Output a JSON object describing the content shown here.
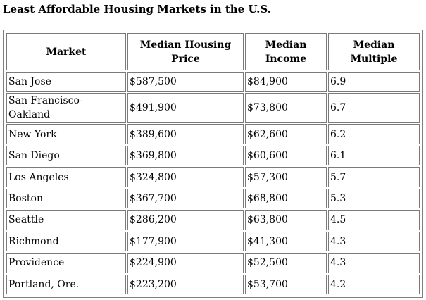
{
  "title": "Least Affordable Housing Markets in the U.S.",
  "table": {
    "columns": [
      "Market",
      "Median Housing Price",
      "Median Income",
      "Median Multiple"
    ],
    "rows": [
      {
        "market": "San Jose",
        "price": "$587,500",
        "income": "$84,900",
        "multiple": "6.9"
      },
      {
        "market": "San Francisco-Oakland",
        "price": "$491,900",
        "income": "$73,800",
        "multiple": "6.7"
      },
      {
        "market": "New York",
        "price": "$389,600",
        "income": "$62,600",
        "multiple": "6.2"
      },
      {
        "market": "San Diego",
        "price": "$369,800",
        "income": "$60,600",
        "multiple": "6.1"
      },
      {
        "market": "Los Angeles",
        "price": "$324,800",
        "income": "$57,300",
        "multiple": "5.7"
      },
      {
        "market": "Boston",
        "price": "$367,700",
        "income": "$68,800",
        "multiple": "5.3"
      },
      {
        "market": "Seattle",
        "price": "$286,200",
        "income": "$63,800",
        "multiple": "4.5"
      },
      {
        "market": "Richmond",
        "price": "$177,900",
        "income": "$41,300",
        "multiple": "4.3"
      },
      {
        "market": "Providence",
        "price": "$224,900",
        "income": "$52,500",
        "multiple": "4.3"
      },
      {
        "market": "Portland, Ore.",
        "price": "$223,200",
        "income": "$53,700",
        "multiple": "4.2"
      }
    ]
  }
}
